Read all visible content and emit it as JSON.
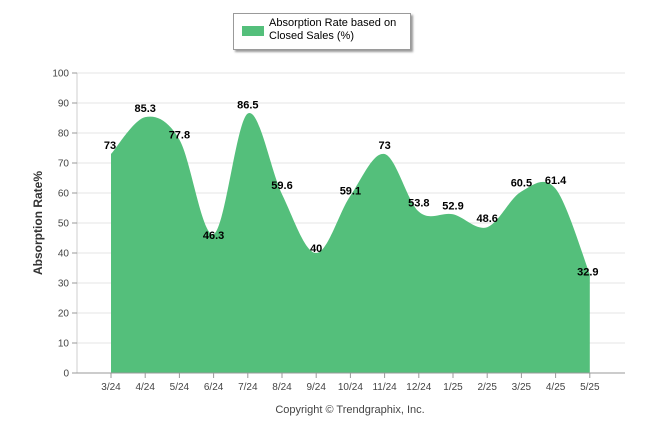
{
  "chart_data": {
    "type": "area",
    "categories": [
      "3/24",
      "4/24",
      "5/24",
      "6/24",
      "7/24",
      "8/24",
      "9/24",
      "10/24",
      "11/24",
      "12/24",
      "1/25",
      "2/25",
      "3/25",
      "4/25",
      "5/25"
    ],
    "series": [
      {
        "name": "Absorption Rate based on Closed Sales (%)",
        "values": [
          73,
          85.3,
          77.8,
          46.3,
          86.5,
          59.6,
          40,
          59.1,
          73,
          53.8,
          52.9,
          48.6,
          60.5,
          61.4,
          32.9
        ],
        "color": "#54bf7b"
      }
    ],
    "data_labels": [
      "73",
      "85.3",
      "77.8",
      "46.3",
      "86.5",
      "59.6",
      "40",
      "59.1",
      "73",
      "53.8",
      "52.9",
      "48.6",
      "60.5",
      "61.4",
      "32.9"
    ],
    "ylabel": "Absorption Rate%",
    "xlabel": "",
    "ylim": [
      0,
      100
    ],
    "yticks": [
      0,
      10,
      20,
      30,
      40,
      50,
      60,
      70,
      80,
      90,
      100
    ],
    "ytick_labels": [
      "0",
      "10",
      "20",
      "30",
      "40",
      "50",
      "60",
      "70",
      "80",
      "90",
      "100"
    ],
    "grid": true,
    "legend_position": "top"
  },
  "legend": {
    "label": "Absorption Rate based on Closed Sales (%)"
  },
  "footer": {
    "copyright": "Copyright © Trendgraphix, Inc."
  }
}
